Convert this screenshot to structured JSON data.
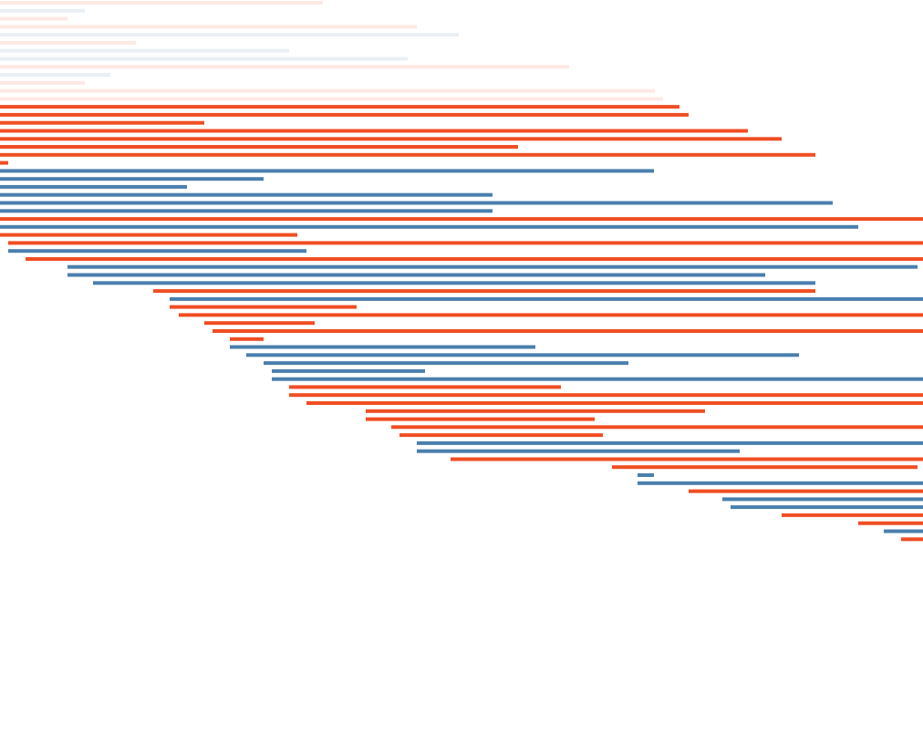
{
  "chart_data": {
    "type": "timeline",
    "title": "",
    "xlabel": "",
    "ylabel": "",
    "xlim": [
      0,
      1012
    ],
    "grid": false,
    "legend": "none",
    "colors": {
      "orange": "#f04e23",
      "blue": "#4a7fae"
    },
    "faded_opacity": 0.12,
    "segments": [
      {
        "start": 0,
        "end": 354,
        "color": "orange",
        "faded": true
      },
      {
        "start": 0,
        "end": 93,
        "color": "blue",
        "faded": true
      },
      {
        "start": 0,
        "end": 74,
        "color": "orange",
        "faded": true
      },
      {
        "start": 0,
        "end": 457,
        "color": "orange",
        "faded": true
      },
      {
        "start": 0,
        "end": 503,
        "color": "blue",
        "faded": true
      },
      {
        "start": 0,
        "end": 149,
        "color": "orange",
        "faded": true
      },
      {
        "start": 0,
        "end": 317,
        "color": "blue",
        "faded": true
      },
      {
        "start": 0,
        "end": 447,
        "color": "blue",
        "faded": true
      },
      {
        "start": 0,
        "end": 624,
        "color": "orange",
        "faded": true
      },
      {
        "start": 0,
        "end": 121,
        "color": "blue",
        "faded": true
      },
      {
        "start": 0,
        "end": 93,
        "color": "orange",
        "faded": true
      },
      {
        "start": 0,
        "end": 718,
        "color": "orange",
        "faded": true
      },
      {
        "start": 0,
        "end": 727,
        "color": "orange",
        "faded": true
      },
      {
        "start": 0,
        "end": 745,
        "color": "orange",
        "faded": false
      },
      {
        "start": 0,
        "end": 755,
        "color": "orange",
        "faded": false
      },
      {
        "start": 0,
        "end": 224,
        "color": "orange",
        "faded": false
      },
      {
        "start": 0,
        "end": 820,
        "color": "orange",
        "faded": false
      },
      {
        "start": 0,
        "end": 857,
        "color": "orange",
        "faded": false
      },
      {
        "start": 0,
        "end": 568,
        "color": "orange",
        "faded": false
      },
      {
        "start": 0,
        "end": 894,
        "color": "orange",
        "faded": false
      },
      {
        "start": 0,
        "end": 9,
        "color": "orange",
        "faded": false
      },
      {
        "start": 0,
        "end": 717,
        "color": "blue",
        "faded": false
      },
      {
        "start": 0,
        "end": 289,
        "color": "blue",
        "faded": false
      },
      {
        "start": 0,
        "end": 205,
        "color": "blue",
        "faded": false
      },
      {
        "start": 0,
        "end": 540,
        "color": "blue",
        "faded": false
      },
      {
        "start": 0,
        "end": 913,
        "color": "blue",
        "faded": false
      },
      {
        "start": 0,
        "end": 540,
        "color": "blue",
        "faded": false
      },
      {
        "start": 0,
        "end": 1012,
        "color": "orange",
        "faded": false
      },
      {
        "start": 0,
        "end": 941,
        "color": "blue",
        "faded": false
      },
      {
        "start": 0,
        "end": 326,
        "color": "orange",
        "faded": false
      },
      {
        "start": 9,
        "end": 1012,
        "color": "orange",
        "faded": false
      },
      {
        "start": 9,
        "end": 336,
        "color": "blue",
        "faded": false
      },
      {
        "start": 28,
        "end": 1012,
        "color": "orange",
        "faded": false
      },
      {
        "start": 74,
        "end": 1006,
        "color": "blue",
        "faded": false
      },
      {
        "start": 74,
        "end": 839,
        "color": "blue",
        "faded": false
      },
      {
        "start": 102,
        "end": 894,
        "color": "blue",
        "faded": false
      },
      {
        "start": 168,
        "end": 894,
        "color": "orange",
        "faded": false
      },
      {
        "start": 186,
        "end": 1012,
        "color": "blue",
        "faded": false
      },
      {
        "start": 186,
        "end": 391,
        "color": "orange",
        "faded": false
      },
      {
        "start": 196,
        "end": 1012,
        "color": "orange",
        "faded": false
      },
      {
        "start": 224,
        "end": 345,
        "color": "orange",
        "faded": false
      },
      {
        "start": 233,
        "end": 1012,
        "color": "orange",
        "faded": false
      },
      {
        "start": 252,
        "end": 289,
        "color": "orange",
        "faded": false
      },
      {
        "start": 252,
        "end": 587,
        "color": "blue",
        "faded": false
      },
      {
        "start": 270,
        "end": 876,
        "color": "blue",
        "faded": false
      },
      {
        "start": 289,
        "end": 689,
        "color": "blue",
        "faded": false
      },
      {
        "start": 298,
        "end": 466,
        "color": "blue",
        "faded": false
      },
      {
        "start": 298,
        "end": 1012,
        "color": "blue",
        "faded": false
      },
      {
        "start": 317,
        "end": 615,
        "color": "orange",
        "faded": false
      },
      {
        "start": 317,
        "end": 1012,
        "color": "orange",
        "faded": false
      },
      {
        "start": 336,
        "end": 1012,
        "color": "orange",
        "faded": false
      },
      {
        "start": 401,
        "end": 773,
        "color": "orange",
        "faded": false
      },
      {
        "start": 401,
        "end": 652,
        "color": "orange",
        "faded": false
      },
      {
        "start": 429,
        "end": 1012,
        "color": "orange",
        "faded": false
      },
      {
        "start": 438,
        "end": 661,
        "color": "orange",
        "faded": false
      },
      {
        "start": 457,
        "end": 1012,
        "color": "blue",
        "faded": false
      },
      {
        "start": 457,
        "end": 811,
        "color": "blue",
        "faded": false
      },
      {
        "start": 494,
        "end": 1012,
        "color": "orange",
        "faded": false
      },
      {
        "start": 671,
        "end": 1006,
        "color": "orange",
        "faded": false
      },
      {
        "start": 699,
        "end": 717,
        "color": "blue",
        "faded": false
      },
      {
        "start": 699,
        "end": 1012,
        "color": "blue",
        "faded": false
      },
      {
        "start": 755,
        "end": 1012,
        "color": "orange",
        "faded": false
      },
      {
        "start": 792,
        "end": 1012,
        "color": "blue",
        "faded": false
      },
      {
        "start": 801,
        "end": 1012,
        "color": "blue",
        "faded": false
      },
      {
        "start": 857,
        "end": 1012,
        "color": "orange",
        "faded": false
      },
      {
        "start": 941,
        "end": 1012,
        "color": "orange",
        "faded": false
      },
      {
        "start": 969,
        "end": 1012,
        "color": "blue",
        "faded": false
      },
      {
        "start": 988,
        "end": 1012,
        "color": "orange",
        "faded": false
      }
    ]
  }
}
